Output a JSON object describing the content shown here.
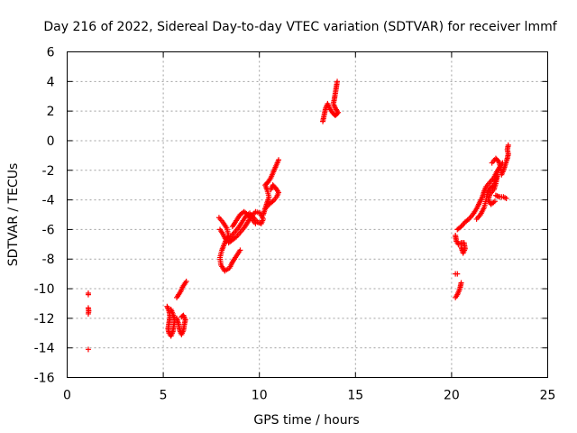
{
  "chart_data": {
    "type": "scatter",
    "title": "Day 216 of 2022, Sidereal Day-to-day VTEC variation (SDTVAR) for receiver lmmf",
    "xlabel": "GPS time / hours",
    "ylabel": "SDTVAR / TECUs",
    "xlim": [
      0,
      25
    ],
    "ylim": [
      -16,
      6
    ],
    "xticks": [
      "0",
      "5",
      "10",
      "15",
      "20",
      "25"
    ],
    "yticks": [
      "6",
      "4",
      "2",
      "0",
      "-2",
      "-4",
      "-6",
      "-8",
      "-10",
      "-12",
      "-14",
      "-16"
    ],
    "grid": true,
    "marker": "+",
    "color": "#ff0000",
    "segments": [
      [
        [
          1.1,
          -10.3
        ],
        [
          1.1,
          -10.4
        ]
      ],
      [
        [
          1.1,
          -11.3
        ],
        [
          1.12,
          -11.5
        ],
        [
          1.1,
          -11.7
        ]
      ],
      [
        [
          1.1,
          -14.1
        ]
      ],
      [
        [
          5.2,
          -11.2
        ],
        [
          5.3,
          -11.5
        ],
        [
          5.35,
          -11.9
        ],
        [
          5.3,
          -12.3
        ],
        [
          5.25,
          -12.7
        ],
        [
          5.3,
          -13.0
        ],
        [
          5.4,
          -13.2
        ],
        [
          5.5,
          -12.9
        ],
        [
          5.55,
          -12.5
        ],
        [
          5.6,
          -12.1
        ],
        [
          5.5,
          -11.7
        ],
        [
          5.4,
          -11.4
        ]
      ],
      [
        [
          5.7,
          -12.0
        ],
        [
          5.8,
          -12.4
        ],
        [
          5.85,
          -12.8
        ],
        [
          5.95,
          -13.1
        ],
        [
          6.05,
          -12.8
        ],
        [
          6.1,
          -12.4
        ],
        [
          6.15,
          -12.1
        ],
        [
          6.05,
          -11.8
        ],
        [
          5.95,
          -11.9
        ]
      ],
      [
        [
          5.7,
          -10.6
        ],
        [
          5.8,
          -10.4
        ],
        [
          5.9,
          -10.2
        ],
        [
          6.0,
          -9.9
        ],
        [
          6.1,
          -9.7
        ],
        [
          6.2,
          -9.5
        ]
      ],
      [
        [
          7.9,
          -5.2
        ],
        [
          8.1,
          -5.5
        ],
        [
          8.3,
          -5.9
        ],
        [
          8.4,
          -6.4
        ],
        [
          8.2,
          -6.9
        ],
        [
          8.05,
          -7.4
        ],
        [
          7.95,
          -7.9
        ],
        [
          8.0,
          -8.4
        ],
        [
          8.2,
          -8.8
        ],
        [
          8.45,
          -8.6
        ],
        [
          8.6,
          -8.2
        ],
        [
          8.8,
          -7.8
        ],
        [
          9.0,
          -7.4
        ]
      ],
      [
        [
          7.95,
          -6.0
        ],
        [
          8.1,
          -6.3
        ],
        [
          8.3,
          -6.8
        ],
        [
          8.5,
          -6.5
        ],
        [
          8.7,
          -6.2
        ],
        [
          8.9,
          -5.9
        ],
        [
          9.1,
          -5.5
        ],
        [
          9.3,
          -5.1
        ],
        [
          9.5,
          -4.9
        ],
        [
          9.7,
          -5.2
        ],
        [
          9.9,
          -5.5
        ],
        [
          10.1,
          -5.6
        ],
        [
          10.2,
          -5.3
        ],
        [
          10.05,
          -4.9
        ],
        [
          9.8,
          -4.8
        ],
        [
          9.6,
          -5.1
        ],
        [
          9.4,
          -5.5
        ],
        [
          9.2,
          -5.9
        ],
        [
          9.0,
          -6.2
        ],
        [
          8.8,
          -6.5
        ],
        [
          8.6,
          -6.7
        ],
        [
          8.4,
          -6.9
        ]
      ],
      [
        [
          8.6,
          -5.8
        ],
        [
          8.8,
          -5.4
        ],
        [
          9.0,
          -5.0
        ],
        [
          9.2,
          -4.8
        ],
        [
          9.4,
          -5.0
        ],
        [
          9.6,
          -5.3
        ],
        [
          9.8,
          -5.6
        ]
      ],
      [
        [
          10.2,
          -5.0
        ],
        [
          10.3,
          -4.6
        ],
        [
          10.4,
          -4.2
        ],
        [
          10.5,
          -3.8
        ],
        [
          10.4,
          -3.3
        ],
        [
          10.3,
          -3.0
        ],
        [
          10.45,
          -2.8
        ],
        [
          10.6,
          -2.5
        ],
        [
          10.7,
          -2.2
        ],
        [
          10.8,
          -1.9
        ],
        [
          10.9,
          -1.6
        ],
        [
          11.0,
          -1.3
        ]
      ],
      [
        [
          10.3,
          -4.6
        ],
        [
          10.5,
          -4.3
        ],
        [
          10.7,
          -4.1
        ],
        [
          10.9,
          -3.8
        ],
        [
          11.0,
          -3.5
        ],
        [
          10.85,
          -3.2
        ],
        [
          10.7,
          -3.0
        ],
        [
          10.6,
          -3.3
        ]
      ],
      [
        [
          13.3,
          1.3
        ],
        [
          13.35,
          1.6
        ],
        [
          13.4,
          1.9
        ],
        [
          13.45,
          2.2
        ],
        [
          13.55,
          2.5
        ],
        [
          13.65,
          2.2
        ],
        [
          13.8,
          1.9
        ],
        [
          13.95,
          1.7
        ],
        [
          14.1,
          1.9
        ],
        [
          13.95,
          2.2
        ],
        [
          13.85,
          2.5
        ],
        [
          13.9,
          2.8
        ],
        [
          13.95,
          3.2
        ],
        [
          14.0,
          3.6
        ],
        [
          14.05,
          4.0
        ]
      ],
      [
        [
          20.2,
          -9.0
        ],
        [
          20.3,
          -9.0
        ]
      ],
      [
        [
          20.2,
          -10.6
        ],
        [
          20.3,
          -10.4
        ],
        [
          20.4,
          -10.1
        ],
        [
          20.45,
          -9.9
        ],
        [
          20.5,
          -9.6
        ]
      ],
      [
        [
          20.2,
          -6.4
        ],
        [
          20.25,
          -6.8
        ],
        [
          20.35,
          -7.0
        ],
        [
          20.5,
          -6.9
        ],
        [
          20.65,
          -6.9
        ],
        [
          20.7,
          -7.3
        ],
        [
          20.6,
          -7.6
        ],
        [
          20.5,
          -7.2
        ]
      ],
      [
        [
          20.3,
          -6.0
        ],
        [
          20.5,
          -5.8
        ],
        [
          20.7,
          -5.5
        ],
        [
          20.9,
          -5.3
        ],
        [
          21.1,
          -5.0
        ],
        [
          21.3,
          -4.6
        ],
        [
          21.45,
          -4.2
        ],
        [
          21.6,
          -3.8
        ],
        [
          21.7,
          -3.4
        ],
        [
          21.8,
          -3.1
        ],
        [
          22.0,
          -2.8
        ],
        [
          22.2,
          -2.5
        ],
        [
          22.35,
          -2.1
        ],
        [
          22.5,
          -1.8
        ],
        [
          22.65,
          -1.5
        ]
      ],
      [
        [
          21.3,
          -5.3
        ],
        [
          21.5,
          -5.0
        ],
        [
          21.7,
          -4.5
        ],
        [
          21.8,
          -4.0
        ],
        [
          21.85,
          -3.5
        ],
        [
          22.0,
          -3.2
        ],
        [
          22.2,
          -3.0
        ],
        [
          22.3,
          -2.6
        ],
        [
          22.4,
          -2.3
        ],
        [
          22.3,
          -2.9
        ],
        [
          22.2,
          -3.3
        ],
        [
          22.0,
          -3.6
        ],
        [
          21.9,
          -4.0
        ],
        [
          22.05,
          -4.3
        ],
        [
          22.25,
          -4.1
        ]
      ],
      [
        [
          22.1,
          -1.5
        ],
        [
          22.3,
          -1.2
        ],
        [
          22.45,
          -1.4
        ],
        [
          22.55,
          -1.8
        ],
        [
          22.6,
          -2.3
        ],
        [
          22.7,
          -2.0
        ],
        [
          22.8,
          -1.6
        ],
        [
          22.9,
          -1.2
        ],
        [
          22.95,
          -0.9
        ],
        [
          22.9,
          -0.6
        ],
        [
          22.95,
          -0.3
        ]
      ],
      [
        [
          22.3,
          -3.7
        ],
        [
          22.5,
          -3.8
        ],
        [
          22.7,
          -3.8
        ],
        [
          22.85,
          -3.9
        ]
      ]
    ]
  }
}
